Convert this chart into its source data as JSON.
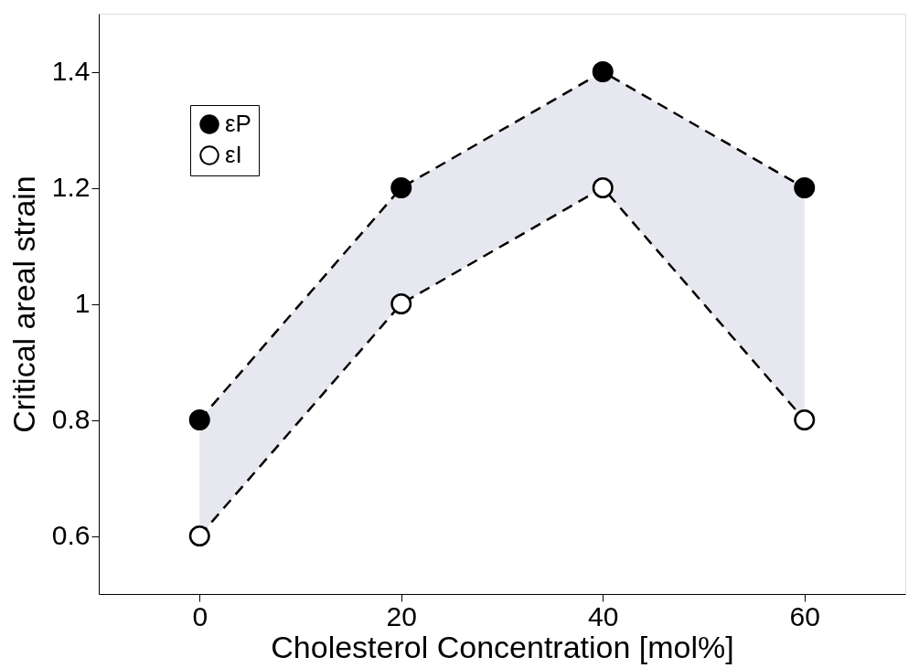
{
  "chart_data": {
    "type": "line",
    "xlabel": "Cholesterol Concentration [mol%]",
    "ylabel": "Critical areal strain",
    "x": [
      0,
      20,
      40,
      60
    ],
    "series": [
      {
        "name": "εP",
        "color": "#000000",
        "values": [
          0.8,
          1.2,
          1.4,
          1.2
        ],
        "lower": [
          0.6,
          1.0,
          1.2,
          0.8
        ],
        "upper": [
          0.8,
          1.2,
          1.4,
          1.2
        ]
      },
      {
        "name": "εI",
        "color": "#ffffff",
        "values": [
          0.6,
          1.0,
          1.2,
          0.8
        ]
      }
    ],
    "xlim": [
      -10,
      70
    ],
    "xticks": [
      0,
      20,
      40,
      60
    ],
    "ylim": [
      0.5,
      1.5
    ],
    "yticks": [
      {
        "value": 0.6,
        "label": "0.6"
      },
      {
        "value": 0.8,
        "label": "0.8"
      },
      {
        "value": 1.0,
        "label": "1"
      },
      {
        "value": 1.2,
        "label": "1.2"
      },
      {
        "value": 1.4,
        "label": "1.4"
      }
    ],
    "grid": false,
    "legend": "top left",
    "marker": "circle",
    "line_style": "dashed"
  }
}
